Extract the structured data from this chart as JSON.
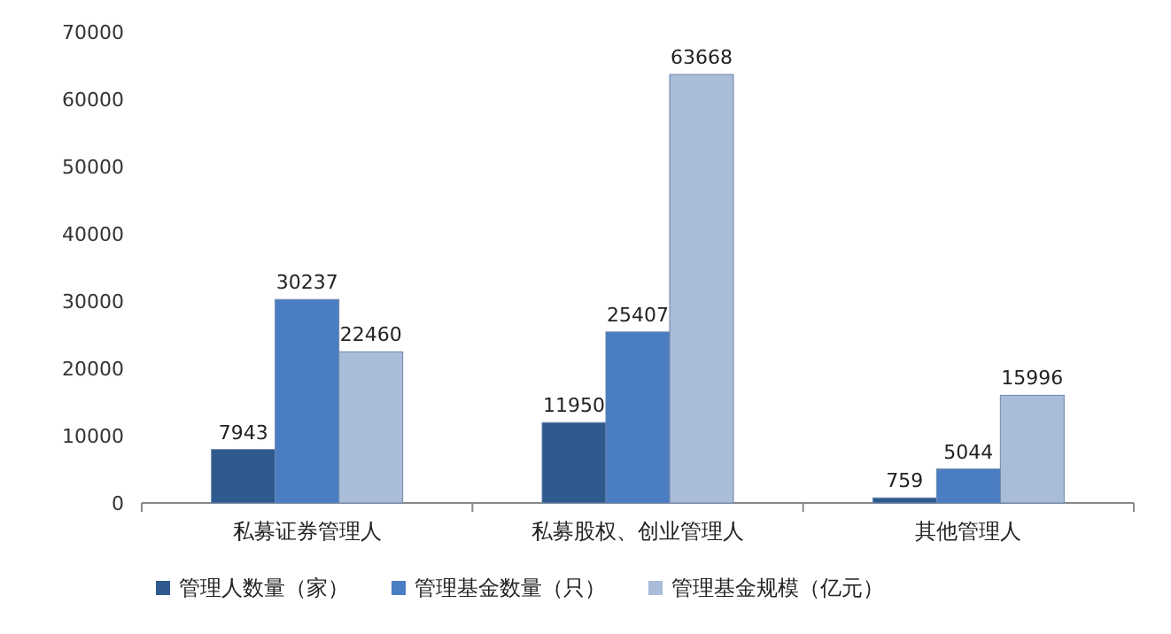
{
  "chart_data": {
    "type": "bar",
    "categories": [
      "私募证券管理人",
      "私募股权、创业管理人",
      "其他管理人"
    ],
    "series": [
      {
        "name": "管理人数量（家）",
        "color": "#2e5a8e",
        "values": [
          7943,
          11950,
          759
        ]
      },
      {
        "name": "管理基金数量（只）",
        "color": "#4a7dc2",
        "values": [
          30237,
          25407,
          5044
        ]
      },
      {
        "name": "管理基金规模（亿元）",
        "color": "#a9bcd8",
        "values": [
          22460,
          63668,
          15996
        ]
      }
    ],
    "ylim": [
      0,
      70000
    ],
    "yticks": [
      0,
      10000,
      20000,
      30000,
      40000,
      50000,
      60000,
      70000
    ],
    "data_labels": true,
    "legend": "bottom"
  }
}
